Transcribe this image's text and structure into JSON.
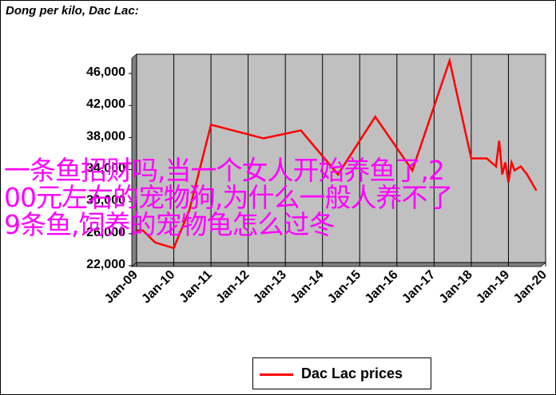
{
  "chart_data": {
    "type": "line",
    "title": "Dong per kilo, Dac Lac:",
    "xlabel": "",
    "ylabel": "",
    "ylim": [
      22000,
      48000
    ],
    "yticks": [
      22000,
      26000,
      30000,
      34000,
      38000,
      42000,
      46000
    ],
    "ytick_labels": [
      "22,000",
      "26,000",
      "30,000",
      "34,000",
      "38,000",
      "42,000",
      "46,000"
    ],
    "xlim": [
      "2009-01",
      "2020-01"
    ],
    "xtick_labels": [
      "Jan-09",
      "Jan-10",
      "Jan-11",
      "Jan-12",
      "Jan-13",
      "Jan-14",
      "Jan-15",
      "Jan-16",
      "Jan-17",
      "Jan-18",
      "Jan-19",
      "Jan-20"
    ],
    "grid": "vertical",
    "legend_position": "bottom",
    "series": [
      {
        "name": "Dac Lac prices",
        "color": "#ff0000",
        "x": [
          "2009-01",
          "2009-03",
          "2009-07",
          "2010-01",
          "2010-06",
          "2011-01",
          "2012-06",
          "2013-06",
          "2014-06",
          "2015-06",
          "2016-06",
          "2017-06",
          "2018-01",
          "2018-06",
          "2018-09",
          "2018-10",
          "2018-11",
          "2018-12",
          "2019-01",
          "2019-02",
          "2019-03",
          "2019-05",
          "2019-07",
          "2019-10"
        ],
        "values": [
          26000,
          26000,
          24500,
          23800,
          28500,
          39200,
          37500,
          38500,
          33000,
          40200,
          33500,
          47200,
          35000,
          35000,
          34000,
          37200,
          33000,
          34500,
          32000,
          34500,
          33500,
          34000,
          33000,
          31000
        ]
      }
    ]
  },
  "overlay_text": {
    "line1": "一条鱼招财吗,当一个女人开始养鱼了,2",
    "line2": "00元左右的宠物狗,为什么一般人养不了",
    "line3": "9条鱼,饲养的宠物龟怎么过冬"
  }
}
